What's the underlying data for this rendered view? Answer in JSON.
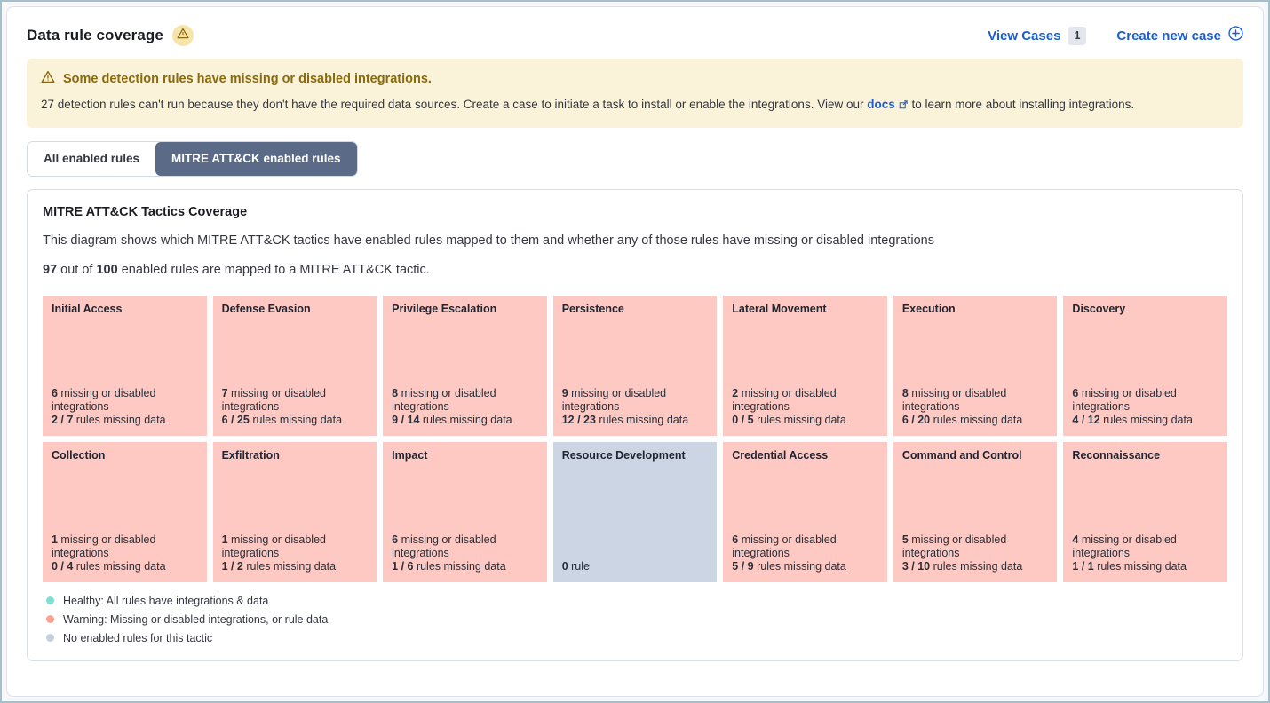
{
  "header": {
    "title": "Data rule coverage",
    "view_cases_label": "View Cases",
    "view_cases_count": "1",
    "create_case_label": "Create new case"
  },
  "callout": {
    "title": "Some detection rules have missing or disabled integrations.",
    "body_before_link": "27 detection rules can't run because they don't have the required data sources. Create a case to initiate a task to install or enable the integrations. View our ",
    "link_text": "docs",
    "body_after_link": " to learn more about installing integrations."
  },
  "tabs": [
    {
      "label": "All enabled rules",
      "selected": false
    },
    {
      "label": "MITRE ATT&CK enabled rules",
      "selected": true
    }
  ],
  "coverage_panel": {
    "title": "MITRE ATT&CK Tactics Coverage",
    "description": "This diagram shows which MITRE ATT&CK tactics have enabled rules mapped to them and whether any of those rules have missing or disabled integrations",
    "summary": {
      "mapped_count": "97",
      "middle_text": " out of ",
      "total_count": "100",
      "suffix_text": " enabled rules are mapped to a MITRE ATT&CK tactic."
    }
  },
  "tactics": [
    {
      "name": "Initial Access",
      "status": "warning",
      "integrations_count": "6",
      "integrations_label": " missing or disabled integrations",
      "rules_ratio": "2 / 7",
      "rules_label": " rules missing data"
    },
    {
      "name": "Defense Evasion",
      "status": "warning",
      "integrations_count": "7",
      "integrations_label": " missing or disabled integrations",
      "rules_ratio": "6 / 25",
      "rules_label": " rules missing data"
    },
    {
      "name": "Privilege Escalation",
      "status": "warning",
      "integrations_count": "8",
      "integrations_label": " missing or disabled integrations",
      "rules_ratio": "9 / 14",
      "rules_label": " rules missing data"
    },
    {
      "name": "Persistence",
      "status": "warning",
      "integrations_count": "9",
      "integrations_label": " missing or disabled integrations",
      "rules_ratio": "12 / 23",
      "rules_label": " rules missing data"
    },
    {
      "name": "Lateral Movement",
      "status": "warning",
      "integrations_count": "2",
      "integrations_label": " missing or disabled integrations",
      "rules_ratio": "0 / 5",
      "rules_label": " rules missing data"
    },
    {
      "name": "Execution",
      "status": "warning",
      "integrations_count": "8",
      "integrations_label": " missing or disabled integrations",
      "rules_ratio": "6 / 20",
      "rules_label": " rules missing data"
    },
    {
      "name": "Discovery",
      "status": "warning",
      "integrations_count": "6",
      "integrations_label": " missing or disabled integrations",
      "rules_ratio": "4 / 12",
      "rules_label": " rules missing data"
    },
    {
      "name": "Collection",
      "status": "warning",
      "integrations_count": "1",
      "integrations_label": " missing or disabled integrations",
      "rules_ratio": "0 / 4",
      "rules_label": " rules missing data"
    },
    {
      "name": "Exfiltration",
      "status": "warning",
      "integrations_count": "1",
      "integrations_label": " missing or disabled integrations",
      "rules_ratio": "1 / 2",
      "rules_label": " rules missing data"
    },
    {
      "name": "Impact",
      "status": "warning",
      "integrations_count": "6",
      "integrations_label": " missing or disabled integrations",
      "rules_ratio": "1 / 6",
      "rules_label": " rules missing data"
    },
    {
      "name": "Resource Development",
      "status": "none",
      "rule_count": "0",
      "rule_label": " rule"
    },
    {
      "name": "Credential Access",
      "status": "warning",
      "integrations_count": "6",
      "integrations_label": " missing or disabled integrations",
      "rules_ratio": "5 / 9",
      "rules_label": " rules missing data"
    },
    {
      "name": "Command and Control",
      "status": "warning",
      "integrations_count": "5",
      "integrations_label": " missing or disabled integrations",
      "rules_ratio": "3 / 10",
      "rules_label": " rules missing data"
    },
    {
      "name": "Reconnaissance",
      "status": "warning",
      "integrations_count": "4",
      "integrations_label": " missing or disabled integrations",
      "rules_ratio": "1 / 1",
      "rules_label": " rules missing data"
    }
  ],
  "legend": [
    {
      "status": "healthy",
      "color": "#80e0d0",
      "label": "Healthy: All rules have integrations & data"
    },
    {
      "status": "warning",
      "color": "#ffa294",
      "label": "Warning: Missing or disabled integrations, or rule data"
    },
    {
      "status": "none",
      "color": "#c6d0de",
      "label": "No enabled rules for this tactic"
    }
  ],
  "colors": {
    "warning_tile": "#fdc9c2",
    "empty_tile": "#cbd5e3",
    "link_blue": "#1c5dd1",
    "selected_tab_bg": "#5a6a87",
    "callout_bg": "#fbf3d9",
    "callout_text": "#8a6a0a"
  }
}
